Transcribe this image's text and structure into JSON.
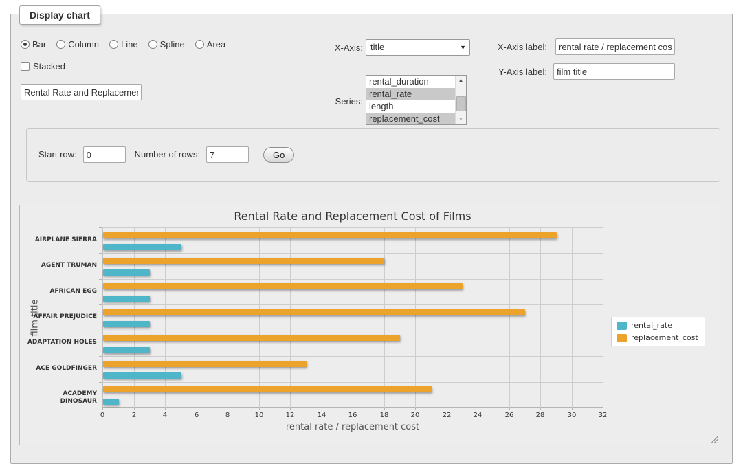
{
  "form": {
    "legend": "Display chart",
    "chart_types": [
      {
        "label": "Bar",
        "checked": true
      },
      {
        "label": "Column",
        "checked": false
      },
      {
        "label": "Line",
        "checked": false
      },
      {
        "label": "Spline",
        "checked": false
      },
      {
        "label": "Area",
        "checked": false
      }
    ],
    "stacked": {
      "label": "Stacked",
      "checked": false
    },
    "title_input": {
      "value": "Rental Rate and Replacement Cost of Films"
    },
    "x_axis": {
      "label": "X-Axis:",
      "selected": "title"
    },
    "series_select": {
      "label": "Series:",
      "options": [
        {
          "label": "rental_duration",
          "selected": false
        },
        {
          "label": "rental_rate",
          "selected": true
        },
        {
          "label": "length",
          "selected": false
        },
        {
          "label": "replacement_cost",
          "selected": true
        }
      ]
    },
    "x_axis_label": {
      "label": "X-Axis label:",
      "value": "rental rate / replacement cost"
    },
    "y_axis_label": {
      "label": "Y-Axis label:",
      "value": "film title"
    },
    "rows": {
      "start_label": "Start row:",
      "start_value": "0",
      "count_label": "Number of rows:",
      "count_value": "7",
      "go_label": "Go"
    }
  },
  "icons": {
    "dropdown_arrow": "▼",
    "scroll_up": "▲",
    "scroll_down": "▼",
    "resize_grip": "diagonal-stripes"
  },
  "chart_data": {
    "type": "bar",
    "title": "Rental Rate and Replacement Cost of Films",
    "xlabel": "rental rate / replacement cost",
    "ylabel": "film title",
    "categories": [
      "AIRPLANE SIERRA",
      "AGENT TRUMAN",
      "AFRICAN EGG",
      "AFFAIR PREJUDICE",
      "ADAPTATION HOLES",
      "ACE GOLDFINGER",
      "ACADEMY DINOSAUR"
    ],
    "series": [
      {
        "name": "rental_rate",
        "color": "#4FB5C8",
        "values": [
          4.99,
          2.99,
          2.99,
          2.99,
          2.99,
          4.99,
          0.99
        ]
      },
      {
        "name": "replacement_cost",
        "color": "#ECA32C",
        "values": [
          28.99,
          17.99,
          22.99,
          26.99,
          18.99,
          12.99,
          20.99
        ]
      }
    ],
    "bar_order": [
      "replacement_cost",
      "rental_rate"
    ],
    "xlim": [
      0,
      32
    ],
    "x_ticks": [
      0,
      2,
      4,
      6,
      8,
      10,
      12,
      14,
      16,
      18,
      20,
      22,
      24,
      26,
      28,
      30,
      32
    ],
    "grid": true,
    "legend_position": "right",
    "plot_background": "#EDEDED"
  }
}
